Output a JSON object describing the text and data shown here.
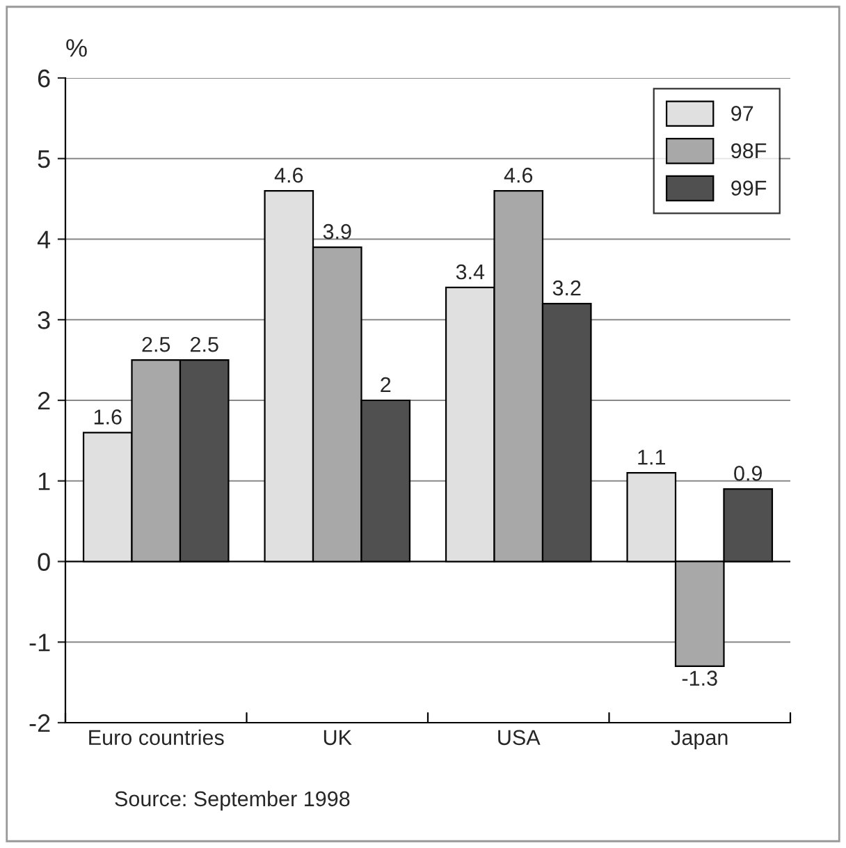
{
  "chart_data": {
    "type": "bar",
    "ylabel": "%",
    "categories": [
      "Euro countries",
      "UK",
      "USA",
      "Japan"
    ],
    "series": [
      {
        "name": "97",
        "color": "#e0e0e0",
        "values": [
          1.6,
          4.6,
          3.4,
          1.1
        ]
      },
      {
        "name": "98F",
        "color": "#a8a8a8",
        "values": [
          2.5,
          3.9,
          4.6,
          -1.3
        ]
      },
      {
        "name": "99F",
        "color": "#505050",
        "values": [
          2.5,
          2,
          3.2,
          0.9
        ]
      }
    ],
    "ylim": [
      -2,
      6
    ],
    "yticks": [
      -2,
      -1,
      0,
      1,
      2,
      3,
      4,
      5,
      6
    ],
    "grid": "y",
    "legend": "top right",
    "data_labels": true,
    "annotations": [
      "Source: September 1998"
    ]
  }
}
